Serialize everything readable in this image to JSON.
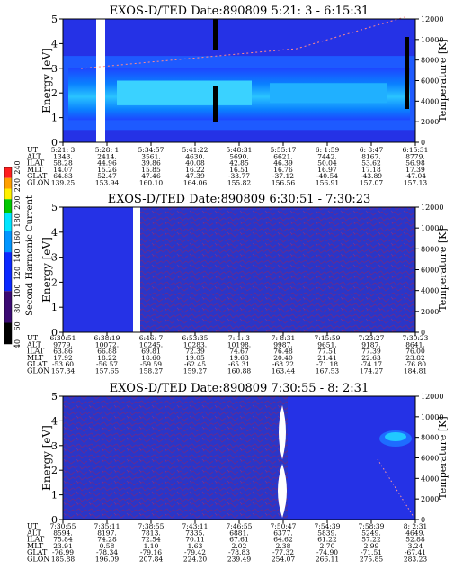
{
  "energy_label": "Energy [eV]",
  "temp_label": "Temperature [K]",
  "colorbar": {
    "label": "Second Harmonic Current",
    "ticks": [
      40,
      60,
      80,
      100,
      120,
      140,
      160,
      180,
      200,
      220,
      240
    ],
    "colors": {
      "black": "#000000",
      "purple": "#3b0a73",
      "blue": "#0a28ff",
      "cyan_blue": "#0096ff",
      "cyan": "#00e6ff",
      "green": "#00c800",
      "yellow": "#fff000",
      "orange": "#ffa000",
      "red": "#ff1e1e"
    }
  },
  "row_labels": [
    "UT",
    "ALT",
    "ILAT",
    "MLT",
    "GLAT",
    "GLON"
  ],
  "chart_data": [
    {
      "type": "heatmap",
      "title": "EXOS-D/TED   Date:890809   5:21: 3 - 6:15:31",
      "ylim": [
        0,
        5
      ],
      "y_ticks": [
        0,
        1,
        2,
        3,
        4,
        5
      ],
      "y2lim": [
        0,
        12000
      ],
      "y2_ticks": [
        0,
        2000,
        4000,
        6000,
        8000,
        10000,
        12000
      ],
      "columns": [
        [
          "5:21: 3",
          "1343.",
          "58.28",
          "14.07",
          "64.83",
          "139.25"
        ],
        [
          "5:28: 1",
          "2414.",
          "44.96",
          "15.26",
          "52.47",
          "153.94"
        ],
        [
          "5:34:57",
          "3561.",
          "39.86",
          "15.85",
          "47.46",
          "160.10"
        ],
        [
          "5:41:22",
          "4630.",
          "40.08",
          "16.22",
          "47.39",
          "164.06"
        ],
        [
          "5:48:31",
          "5690.",
          "42.85",
          "16.51",
          "-33.77",
          "155.82"
        ],
        [
          "5:55:17",
          "6621.",
          "46.39",
          "16.76",
          "-37.12",
          "156.56"
        ],
        [
          "6: 1:59",
          "7442.",
          "50.04",
          "16.97",
          "-40.54",
          "156.91"
        ],
        [
          "6: 8:47",
          "8167.",
          "53.62",
          "17.18",
          "-43.89",
          "157.07"
        ],
        [
          "6:15:31",
          "8779.",
          "56.98",
          "17.39",
          "-47.04",
          "157.13"
        ]
      ]
    },
    {
      "type": "heatmap",
      "title": "EXOS-D/TED   Date:890809   6:30:51 - 7:30:23",
      "ylim": [
        0,
        5
      ],
      "y_ticks": [
        0,
        1,
        2,
        3,
        4,
        5
      ],
      "y2lim": [
        0,
        12000
      ],
      "y2_ticks": [
        0,
        2000,
        4000,
        6000,
        8000,
        10000,
        12000
      ],
      "columns": [
        [
          "6:30:51",
          "9779.",
          "63.86",
          "17.92",
          "-53.60",
          "157.34"
        ],
        [
          "6:38:19",
          "10072.",
          "66.88",
          "18.22",
          "-56.57",
          "157.65"
        ],
        [
          "6:46: 7",
          "10245.",
          "69.81",
          "18.60",
          "-59.59",
          "158.27"
        ],
        [
          "6:53:35",
          "10283.",
          "72.39",
          "19.05",
          "-62.45",
          "159.27"
        ],
        [
          "7: 1: 3",
          "10198.",
          "74.67",
          "19.63",
          "-65.31",
          "160.88"
        ],
        [
          "7: 8:31",
          "9987.",
          "76.48",
          "20.40",
          "-68.22",
          "163.44"
        ],
        [
          "7:15:59",
          "9651.",
          "77.51",
          "21.41",
          "-71.18",
          "167.53"
        ],
        [
          "7:23:27",
          "9187.",
          "77.39",
          "22.63",
          "-74.17",
          "174.27"
        ],
        [
          "7:30:23",
          "8641.",
          "76.00",
          "23.82",
          "-76.80",
          "184.81"
        ]
      ]
    },
    {
      "type": "heatmap",
      "title": "EXOS-D/TED   Date:890809   7:30:55 - 8: 2:31",
      "ylim": [
        0,
        5
      ],
      "y_ticks": [
        0,
        1,
        2,
        3,
        4,
        5
      ],
      "y2lim": [
        0,
        12000
      ],
      "y2_ticks": [
        0,
        2000,
        4000,
        6000,
        8000,
        10000,
        12000
      ],
      "columns": [
        [
          "7:30:55",
          "8594.",
          "75.84",
          "23.91",
          "-76.99",
          "185.88"
        ],
        [
          "7:35:11",
          "8197.",
          "74.28",
          "0.58",
          "-78.34",
          "196.09"
        ],
        [
          "7:38:55",
          "7813.",
          "72.54",
          "1.10",
          "-79.16",
          "207.84"
        ],
        [
          "7:43:11",
          "7335.",
          "70.11",
          "1.63",
          "-79.42",
          "224.20"
        ],
        [
          "7:46:55",
          "6881.",
          "67.61",
          "2.02",
          "-78.83",
          "239.49"
        ],
        [
          "7:50:47",
          "6377.",
          "64.62",
          "2.38",
          "-77.32",
          "254.07"
        ],
        [
          "7:54:39",
          "5839.",
          "61.22",
          "2.70",
          "-74.90",
          "266.11"
        ],
        [
          "7:58:39",
          "5249.",
          "57.22",
          "2.99",
          "-71.51",
          "275.85"
        ],
        [
          "8: 2:31",
          "4649.",
          "52.88",
          "3.24",
          "-67.41",
          "283.23"
        ]
      ]
    }
  ]
}
